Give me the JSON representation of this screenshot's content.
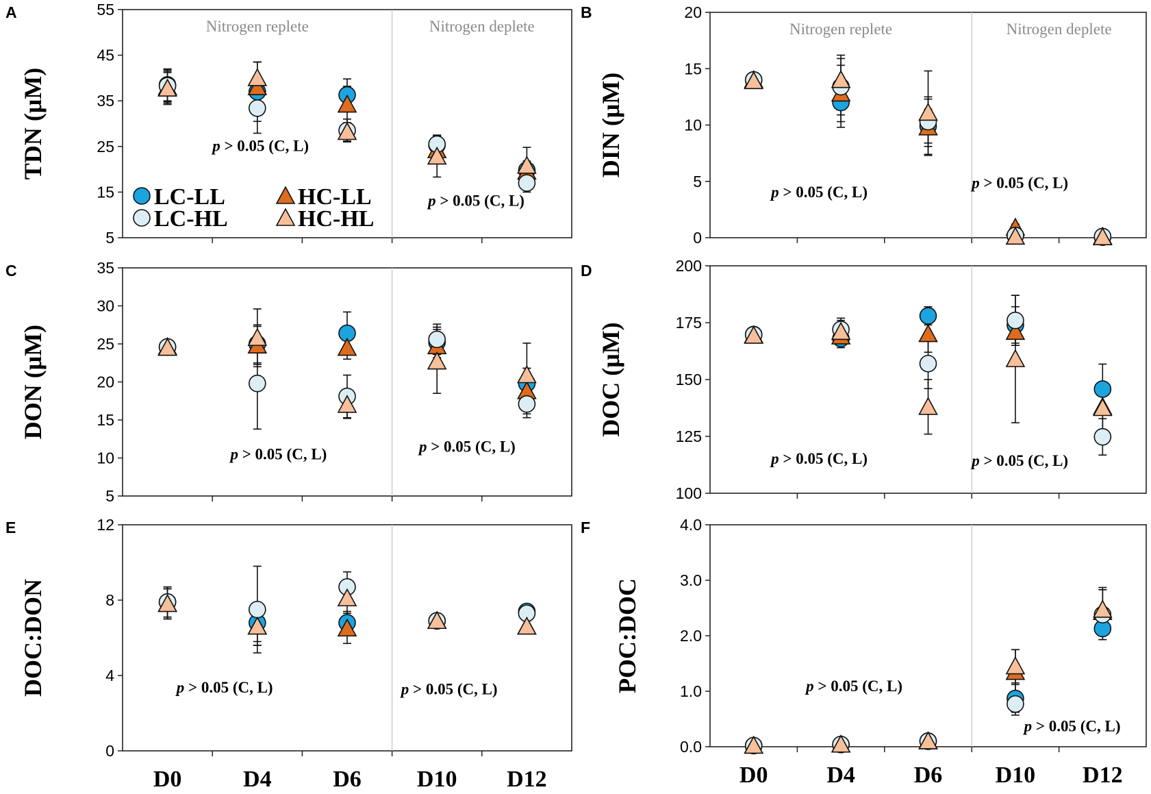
{
  "colors": {
    "LC-LL": "#1ba4e0",
    "HC-LL": "#de6c1e",
    "LC-HL": "#dceef3",
    "HC-HL": "#f7c09a",
    "divider": "#c8c8c8",
    "phase_text": "#8a8a8a"
  },
  "phase_labels": {
    "replete": "Nitrogen replete",
    "deplete": "Nitrogen deplete"
  },
  "legend": [
    {
      "label": "LC-LL",
      "marker": "circle",
      "series": "LC-LL"
    },
    {
      "label": "HC-LL",
      "marker": "triangle",
      "series": "HC-LL"
    },
    {
      "label": "LC-HL",
      "marker": "circle",
      "series": "LC-HL"
    },
    {
      "label": "HC-HL",
      "marker": "triangle",
      "series": "HC-HL"
    }
  ],
  "chart_data": [
    {
      "type": "scatter",
      "panel": "A",
      "ylabel": "TDN (μM)",
      "ylim": [
        5,
        55
      ],
      "yticks": [
        "5",
        "15",
        "25",
        "35",
        "45",
        "55"
      ],
      "categories": [
        "D0",
        "D4",
        "D6",
        "D10",
        "D12"
      ],
      "show_xticklabels": false,
      "show_legend": true,
      "phase_labels": true,
      "p_texts": [
        {
          "pre": "p",
          "post": " > 0.05 (C, L)",
          "x": 1.0,
          "y": 24
        },
        {
          "pre": "p",
          "post": " > 0.05 (C, L)",
          "x": 3.4,
          "y": 12
        }
      ],
      "series": [
        {
          "name": "LC-LL",
          "values": [
            38.5,
            37.0,
            36.3,
            25.3,
            19.8
          ],
          "errors": [
            3.5,
            6.5,
            3.5,
            2.0,
            2.0
          ]
        },
        {
          "name": "HC-LL",
          "values": [
            38.0,
            38.0,
            34.2,
            24.2,
            19.5
          ],
          "errors": [
            3.5,
            5.5,
            4.0,
            2.0,
            2.0
          ]
        },
        {
          "name": "LC-HL",
          "values": [
            38.3,
            33.4,
            28.5,
            25.5,
            17.0
          ],
          "errors": [
            3.5,
            5.5,
            2.5,
            2.0,
            2.0
          ]
        },
        {
          "name": "HC-HL",
          "values": [
            37.7,
            40.0,
            28.2,
            22.8,
            20.8
          ],
          "errors": [
            3.5,
            3.5,
            2.0,
            4.5,
            4.0
          ]
        }
      ]
    },
    {
      "type": "scatter",
      "panel": "B",
      "ylabel": "DIN (μM)",
      "ylim": [
        0,
        20
      ],
      "yticks": [
        "0",
        "5",
        "10",
        "15",
        "20"
      ],
      "categories": [
        "D0",
        "D4",
        "D6",
        "D10",
        "D12"
      ],
      "show_xticklabels": false,
      "show_legend": false,
      "phase_labels": true,
      "p_texts": [
        {
          "pre": "p",
          "post": " > 0.05 (C, L)",
          "x": 0.7,
          "y": 3.6
        },
        {
          "pre": "p",
          "post": " > 0.05 (C, L)",
          "x": 3.0,
          "y": 4.4
        }
      ],
      "series": [
        {
          "name": "LC-LL",
          "values": [
            14.0,
            12.0,
            9.9,
            0.2,
            0.05
          ],
          "errors": [
            0.3,
            2.2,
            1.5,
            0.3,
            0.1
          ]
        },
        {
          "name": "HC-LL",
          "values": [
            14.0,
            12.8,
            9.8,
            0.9,
            0.1
          ],
          "errors": [
            0.3,
            2.5,
            2.5,
            0.3,
            0.1
          ]
        },
        {
          "name": "LC-HL",
          "values": [
            14.0,
            13.4,
            10.3,
            0.2,
            0.1
          ],
          "errors": [
            0.3,
            2.5,
            2.2,
            0.3,
            0.1
          ]
        },
        {
          "name": "HC-HL",
          "values": [
            13.9,
            14.0,
            11.1,
            0.1,
            0.05
          ],
          "errors": [
            0.3,
            2.2,
            3.7,
            0.3,
            0.1
          ]
        }
      ]
    },
    {
      "type": "scatter",
      "panel": "C",
      "ylabel": "DON (μM)",
      "ylim": [
        5,
        35
      ],
      "yticks": [
        "5",
        "10",
        "15",
        "20",
        "25",
        "30",
        "35"
      ],
      "categories": [
        "D0",
        "D4",
        "D6",
        "D10",
        "D12"
      ],
      "show_xticklabels": false,
      "show_legend": false,
      "phase_labels": false,
      "p_texts": [
        {
          "pre": "p",
          "post": " > 0.05 (C, L)",
          "x": 1.2,
          "y": 9.8
        },
        {
          "pre": "p",
          "post": " > 0.05 (C, L)",
          "x": 3.3,
          "y": 10.8
        }
      ],
      "series": [
        {
          "name": "LC-LL",
          "values": [
            24.6,
            25.0,
            26.4,
            25.2,
            19.8
          ],
          "errors": [
            0.5,
            2.5,
            2.8,
            2.0,
            2.0
          ]
        },
        {
          "name": "HC-LL",
          "values": [
            24.6,
            24.8,
            24.5,
            24.7,
            18.8
          ],
          "errors": [
            0.5,
            2.5,
            1.5,
            2.5,
            3.0
          ]
        },
        {
          "name": "LC-HL",
          "values": [
            24.6,
            19.8,
            18.1,
            25.6,
            17.1
          ],
          "errors": [
            0.5,
            6.0,
            2.8,
            2.0,
            1.8
          ]
        },
        {
          "name": "HC-HL",
          "values": [
            24.5,
            25.8,
            17.0,
            22.7,
            20.9
          ],
          "errors": [
            0.5,
            3.8,
            1.8,
            4.2,
            4.2
          ]
        }
      ]
    },
    {
      "type": "scatter",
      "panel": "D",
      "ylabel": "DOC (μM)",
      "ylim": [
        100,
        200
      ],
      "yticks": [
        "100",
        "125",
        "150",
        "175",
        "200"
      ],
      "categories": [
        "D0",
        "D4",
        "D6",
        "D10",
        "D12"
      ],
      "show_xticklabels": false,
      "show_legend": false,
      "phase_labels": false,
      "p_texts": [
        {
          "pre": "p",
          "post": " > 0.05 (C, L)",
          "x": 0.7,
          "y": 113
        },
        {
          "pre": "p",
          "post": " > 0.05 (C, L)",
          "x": 3.0,
          "y": 112
        }
      ],
      "series": [
        {
          "name": "LC-LL",
          "values": [
            169.8,
            168.0,
            178.0,
            174.0,
            145.8
          ],
          "errors": [
            1.5,
            4.0,
            4.0,
            8.0,
            11.0
          ]
        },
        {
          "name": "HC-LL",
          "values": [
            169.5,
            169.0,
            170.0,
            171.0,
            138.0
          ],
          "errors": [
            1.5,
            4.0,
            8.0,
            6.0,
            10.0
          ]
        },
        {
          "name": "LC-HL",
          "values": [
            169.7,
            172.0,
            157.0,
            176.0,
            124.8
          ],
          "errors": [
            1.5,
            5.0,
            11.0,
            11.0,
            8.0
          ]
        },
        {
          "name": "HC-HL",
          "values": [
            169.3,
            171.0,
            138.0,
            159.0,
            137.5
          ],
          "errors": [
            1.5,
            5.0,
            12.0,
            28.0,
            10.0
          ]
        }
      ]
    },
    {
      "type": "scatter",
      "panel": "E",
      "ylabel": "DOC:DON",
      "ylim": [
        0,
        12
      ],
      "yticks": [
        "0",
        "4",
        "8",
        "12"
      ],
      "categories": [
        "D0",
        "D4",
        "D6",
        "D10",
        "D12"
      ],
      "show_xticklabels": true,
      "show_legend": false,
      "phase_labels": false,
      "p_texts": [
        {
          "pre": "p",
          "post": " > 0.05 (C, L)",
          "x": 0.6,
          "y": 3.1
        },
        {
          "pre": "p",
          "post": " > 0.05 (C, L)",
          "x": 3.1,
          "y": 3.0
        }
      ],
      "series": [
        {
          "name": "LC-LL",
          "values": [
            7.9,
            6.8,
            6.8,
            6.9,
            7.4
          ],
          "errors": [
            0.8,
            1.0,
            0.6,
            0.3,
            0.3
          ]
        },
        {
          "name": "HC-LL",
          "values": [
            7.8,
            6.6,
            6.5,
            6.9,
            6.6
          ],
          "errors": [
            0.8,
            1.0,
            0.8,
            0.3,
            0.3
          ]
        },
        {
          "name": "LC-HL",
          "values": [
            7.9,
            7.5,
            8.7,
            6.9,
            7.3
          ],
          "errors": [
            0.8,
            2.3,
            0.8,
            0.3,
            0.3
          ]
        },
        {
          "name": "HC-HL",
          "values": [
            7.8,
            6.6,
            8.1,
            6.9,
            6.6
          ],
          "errors": [
            0.8,
            1.0,
            1.0,
            0.3,
            0.3
          ]
        }
      ]
    },
    {
      "type": "scatter",
      "panel": "F",
      "ylabel": "POC:DOC",
      "ylim": [
        0,
        4
      ],
      "yticks": [
        "0.0",
        "1.0",
        "2.0",
        "3.0",
        "4.0"
      ],
      "categories": [
        "D0",
        "D4",
        "D6",
        "D10",
        "D12"
      ],
      "show_xticklabels": true,
      "show_legend": false,
      "phase_labels": false,
      "p_texts": [
        {
          "pre": "p",
          "post": " > 0.05 (C, L)",
          "x": 1.1,
          "y": 1.0
        },
        {
          "pre": "p",
          "post": " > 0.05 (C, L)",
          "x": 3.6,
          "y": 0.28
        }
      ],
      "series": [
        {
          "name": "LC-LL",
          "values": [
            0.02,
            0.04,
            0.1,
            0.87,
            2.13
          ],
          "errors": [
            0.02,
            0.03,
            0.05,
            0.25,
            0.2
          ]
        },
        {
          "name": "HC-LL",
          "values": [
            0.02,
            0.04,
            0.1,
            1.35,
            2.43
          ],
          "errors": [
            0.02,
            0.03,
            0.05,
            0.4,
            0.4
          ]
        },
        {
          "name": "LC-HL",
          "values": [
            0.02,
            0.04,
            0.1,
            0.77,
            2.38
          ],
          "errors": [
            0.02,
            0.03,
            0.05,
            0.2,
            0.45
          ]
        },
        {
          "name": "HC-HL",
          "values": [
            0.02,
            0.04,
            0.1,
            1.45,
            2.47
          ],
          "errors": [
            0.02,
            0.03,
            0.05,
            0.3,
            0.4
          ]
        }
      ]
    }
  ]
}
